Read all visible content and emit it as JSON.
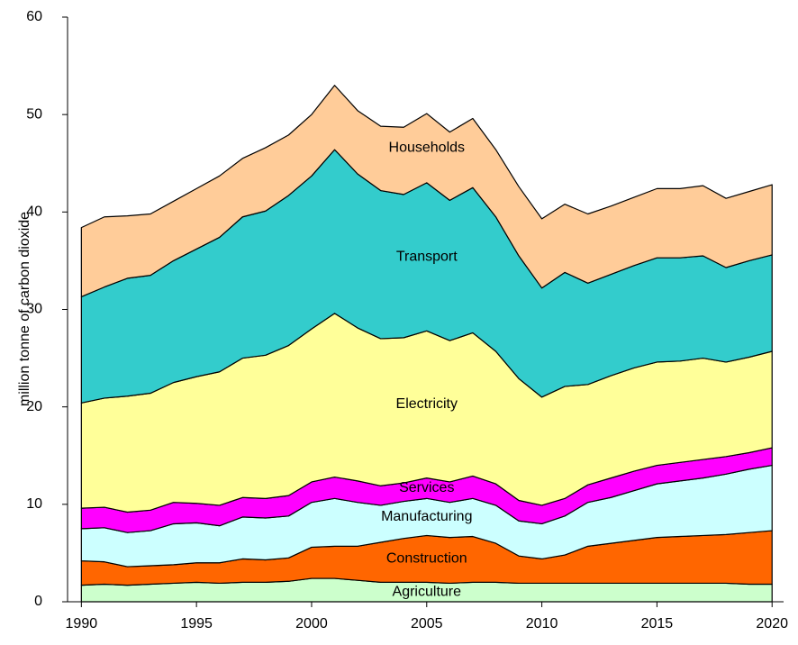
{
  "chart_data": {
    "type": "stacked-area",
    "y_label": "million tonne of carbon dioxide",
    "x": [
      1990,
      1991,
      1992,
      1993,
      1994,
      1995,
      1996,
      1997,
      1998,
      1999,
      2000,
      2001,
      2002,
      2003,
      2004,
      2005,
      2006,
      2007,
      2008,
      2009,
      2010,
      2011,
      2012,
      2013,
      2014,
      2015,
      2016,
      2017,
      2018,
      2019,
      2020
    ],
    "xlim": [
      1989.4,
      2020.5
    ],
    "xticks": [
      1990,
      1995,
      2000,
      2005,
      2010,
      2015,
      2020
    ],
    "ylim": [
      0,
      60
    ],
    "yticks": [
      0,
      10,
      20,
      30,
      40,
      50,
      60
    ],
    "grid": false,
    "series": [
      {
        "name": "Agriculture",
        "color": "#ccffcc",
        "values": [
          1.7,
          1.8,
          1.7,
          1.8,
          1.9,
          2.0,
          1.9,
          2.0,
          2.0,
          2.1,
          2.4,
          2.4,
          2.2,
          2.0,
          2.0,
          2.0,
          1.9,
          2.0,
          2.0,
          1.9,
          1.9,
          1.9,
          1.9,
          1.9,
          1.9,
          1.9,
          1.9,
          1.9,
          1.9,
          1.8,
          1.8
        ]
      },
      {
        "name": "Construction",
        "color": "#ff6600",
        "values": [
          2.5,
          2.3,
          1.9,
          1.9,
          1.9,
          2.0,
          2.1,
          2.4,
          2.3,
          2.4,
          3.2,
          3.3,
          3.5,
          4.1,
          4.5,
          4.8,
          4.7,
          4.7,
          4.0,
          2.8,
          2.5,
          2.9,
          3.8,
          4.1,
          4.4,
          4.7,
          4.8,
          4.9,
          5.0,
          5.3,
          5.5
        ]
      },
      {
        "name": "Manufacturing",
        "color": "#ccffff",
        "values": [
          3.3,
          3.5,
          3.5,
          3.6,
          4.2,
          4.1,
          3.8,
          4.3,
          4.3,
          4.3,
          4.6,
          4.9,
          4.5,
          3.8,
          3.8,
          3.8,
          3.6,
          3.9,
          3.9,
          3.6,
          3.6,
          4.0,
          4.5,
          4.7,
          5.1,
          5.5,
          5.7,
          5.9,
          6.2,
          6.5,
          6.7
        ]
      },
      {
        "name": "Services",
        "color": "#ff00ff",
        "values": [
          2.1,
          2.1,
          2.1,
          2.1,
          2.2,
          2.0,
          2.1,
          2.0,
          2.0,
          2.1,
          2.1,
          2.2,
          2.2,
          2.0,
          1.9,
          2.1,
          2.1,
          2.3,
          2.2,
          2.1,
          1.9,
          1.8,
          1.8,
          2.0,
          2.0,
          1.9,
          1.9,
          1.9,
          1.8,
          1.7,
          1.8
        ]
      },
      {
        "name": "Electricity",
        "color": "#ffff99",
        "values": [
          10.8,
          11.2,
          11.9,
          12.0,
          12.3,
          13.0,
          13.7,
          14.3,
          14.7,
          15.4,
          15.7,
          16.8,
          15.7,
          15.1,
          14.9,
          15.1,
          14.5,
          14.7,
          13.6,
          12.5,
          11.1,
          11.5,
          10.3,
          10.5,
          10.6,
          10.6,
          10.4,
          10.4,
          9.7,
          9.8,
          9.9
        ]
      },
      {
        "name": "Transport",
        "color": "#33cccc",
        "values": [
          10.9,
          11.4,
          12.1,
          12.1,
          12.5,
          13.1,
          13.8,
          14.5,
          14.8,
          15.4,
          15.7,
          16.8,
          15.8,
          15.2,
          14.7,
          15.2,
          14.4,
          14.9,
          13.8,
          12.6,
          11.2,
          11.7,
          10.4,
          10.4,
          10.5,
          10.7,
          10.6,
          10.5,
          9.7,
          9.9,
          9.9
        ]
      },
      {
        "name": "Households",
        "color": "#ffcc99",
        "values": [
          7.1,
          7.2,
          6.4,
          6.3,
          6.1,
          6.2,
          6.3,
          6.0,
          6.5,
          6.2,
          6.3,
          6.6,
          6.5,
          6.6,
          6.9,
          7.1,
          7.0,
          7.1,
          6.9,
          7.1,
          7.1,
          7.0,
          7.1,
          7.0,
          7.0,
          7.1,
          7.1,
          7.2,
          7.1,
          7.1,
          7.2
        ]
      }
    ]
  }
}
